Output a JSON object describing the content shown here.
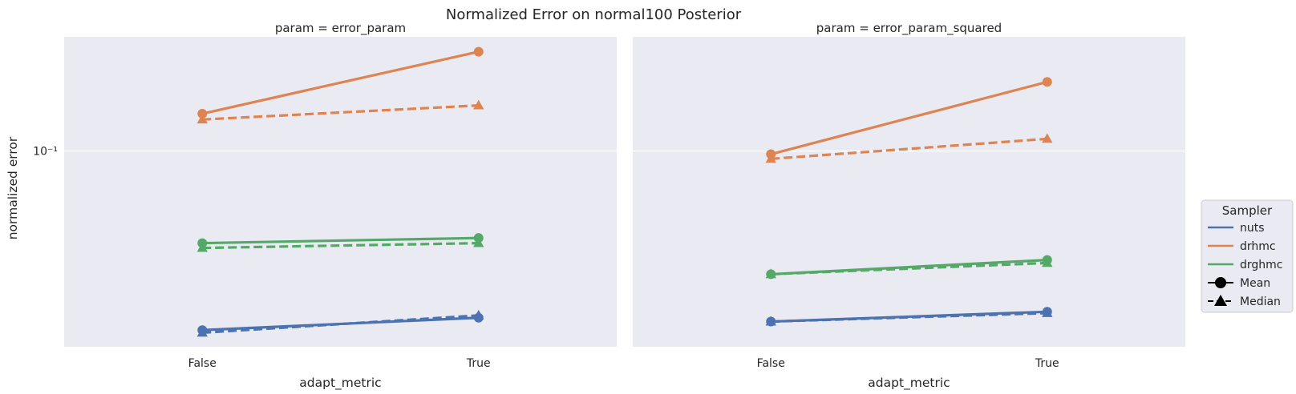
{
  "figure": {
    "title": "Normalized Error on normal100 Posterior",
    "ylabel": "normalized error",
    "y_tick_label": "10⁻¹"
  },
  "legend": {
    "title": "Sampler",
    "entries": [
      {
        "label": "nuts",
        "kind": "color",
        "color": "#4c72b0"
      },
      {
        "label": "drhmc",
        "kind": "color",
        "color": "#dd8452"
      },
      {
        "label": "drghmc",
        "kind": "color",
        "color": "#55a868"
      },
      {
        "label": "Mean",
        "kind": "style",
        "marker": "circle",
        "dash": "solid"
      },
      {
        "label": "Median",
        "kind": "style",
        "marker": "triangle",
        "dash": "dashed"
      }
    ]
  },
  "chart_data": [
    {
      "type": "line",
      "title": "param = error_param",
      "xlabel": "adapt_metric",
      "ylabel": "normalized error",
      "y_scale": "log",
      "ylim": [
        0.0215,
        0.245
      ],
      "y_ticks": [
        0.1
      ],
      "categories": [
        "False",
        "True"
      ],
      "grid": true,
      "series": [
        {
          "sampler": "nuts",
          "stat": "Mean",
          "color": "#4c72b0",
          "values": [
            0.0245,
            0.027
          ]
        },
        {
          "sampler": "nuts",
          "stat": "Median",
          "color": "#4c72b0",
          "values": [
            0.024,
            0.0275
          ]
        },
        {
          "sampler": "drhmc",
          "stat": "Mean",
          "color": "#dd8452",
          "values": [
            0.134,
            0.218
          ]
        },
        {
          "sampler": "drhmc",
          "stat": "Median",
          "color": "#dd8452",
          "values": [
            0.128,
            0.143
          ]
        },
        {
          "sampler": "drghmc",
          "stat": "Mean",
          "color": "#55a868",
          "values": [
            0.0485,
            0.0505
          ]
        },
        {
          "sampler": "drghmc",
          "stat": "Median",
          "color": "#55a868",
          "values": [
            0.0467,
            0.0485
          ]
        }
      ]
    },
    {
      "type": "line",
      "title": "param = error_param_squared",
      "xlabel": "adapt_metric",
      "ylabel": "",
      "y_scale": "log",
      "ylim": [
        0.0215,
        0.245
      ],
      "y_ticks": [
        0.1
      ],
      "categories": [
        "False",
        "True"
      ],
      "grid": true,
      "series": [
        {
          "sampler": "nuts",
          "stat": "Mean",
          "color": "#4c72b0",
          "values": [
            0.0262,
            0.0283
          ]
        },
        {
          "sampler": "nuts",
          "stat": "Median",
          "color": "#4c72b0",
          "values": [
            0.0262,
            0.028
          ]
        },
        {
          "sampler": "drhmc",
          "stat": "Mean",
          "color": "#dd8452",
          "values": [
            0.0975,
            0.172
          ]
        },
        {
          "sampler": "drhmc",
          "stat": "Median",
          "color": "#dd8452",
          "values": [
            0.094,
            0.11
          ]
        },
        {
          "sampler": "drghmc",
          "stat": "Mean",
          "color": "#55a868",
          "values": [
            0.038,
            0.0425
          ]
        },
        {
          "sampler": "drghmc",
          "stat": "Median",
          "color": "#55a868",
          "values": [
            0.038,
            0.0415
          ]
        }
      ]
    }
  ]
}
